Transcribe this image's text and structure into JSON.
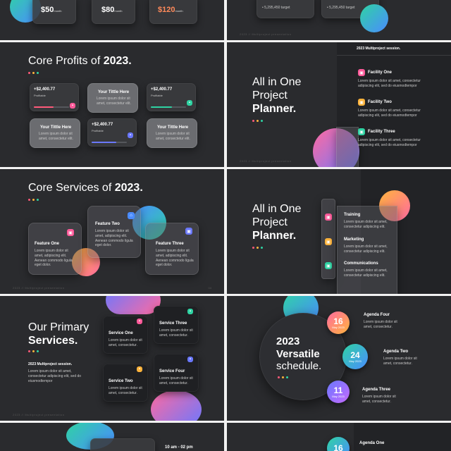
{
  "s1": {
    "prices": [
      {
        "value": "$50",
        "unit": "month"
      },
      {
        "value": "$80",
        "unit": "month"
      },
      {
        "value": "$120",
        "unit": "month"
      }
    ]
  },
  "s2": {
    "targets": [
      "5,295,450 target",
      "5,295,450 target"
    ],
    "footer": "2023 // Multiproject presentation"
  },
  "s3": {
    "title_pre": "Core Profits of ",
    "title_bold": "2023.",
    "stats": [
      {
        "value": "+$2,400.77",
        "label": "Profitable",
        "progress": 0.55,
        "color": "#ff5a7a"
      },
      {
        "value": "+$2,400.77",
        "label": "Profitable",
        "progress": 0.6,
        "color": "#2fd3a3"
      },
      {
        "value": "+$2,400.77",
        "label": "Profitable",
        "progress": 0.7,
        "color": "#6a78ff"
      }
    ],
    "tiles": [
      {
        "title": "Your Tittle Here",
        "body": "Lorem ipsum dolor sit amet, consectetur elit."
      },
      {
        "title": "Your Tittle Here",
        "body": "Lorem ipsum dolor sit amet, consectetur elit."
      },
      {
        "title": "Your Tittle Here",
        "body": "Lorem ipsum dolor sit amet, consectetur elit."
      }
    ]
  },
  "s4": {
    "title_l1": "All in One",
    "title_l2": "Project",
    "title_l3": "Planner.",
    "header": "2023 Multiproject session.",
    "facilities": [
      {
        "title": "Facility One",
        "body": "Lorem ipsum dolor sit amet, consectetur adipiscing elit, sed do eiusmodtempor",
        "color": "#ff5a9a"
      },
      {
        "title": "Facility Two",
        "body": "Lorem ipsum dolor sit amet, consectetur adipiscing elit, sed do eiusmodtempor",
        "color": "#ffb43c"
      },
      {
        "title": "Facility Three",
        "body": "Lorem ipsum dolor sit amet, consectetur adipiscing elit, sed do eiusmodtempor",
        "color": "#2fd3a3"
      }
    ],
    "footer": "2023 // Multiproject presentation"
  },
  "s5": {
    "title_pre": "Core Services of ",
    "title_bold": "2023.",
    "features": [
      {
        "title": "Feature One",
        "body": "Lorem ipsum dolor sit amet, adipiscing elit. Aenean commodo ligula eget dolor."
      },
      {
        "title": "Feature Two",
        "body": "Lorem ipsum dolor sit amet, adipiscing elit. Aenean commodo ligula eget dolor."
      },
      {
        "title": "Feature Three",
        "body": "Lorem ipsum dolor sit amet, adipiscing elit. Aenean commodo ligula eget dolor."
      }
    ],
    "footer": "2023 // Multiproject presentation",
    "page": "04"
  },
  "s6": {
    "title_l1": "All in One",
    "title_l2": "Project",
    "title_l3": "Planner.",
    "items": [
      {
        "title": "Training",
        "body": "Lorem ipsum dolor sit amet, consectetur adipiscing elit."
      },
      {
        "title": "Marketing",
        "body": "Lorem ipsum dolor sit amet, consectetur adipiscing elit."
      },
      {
        "title": "Communications",
        "body": "Lorem ipsum dolor sit amet, consectetur adipiscing elit."
      }
    ]
  },
  "s7": {
    "title_l1": "Our Primary",
    "title_l2": "Services.",
    "session": "2023 Multiproject session.",
    "session_body": "Lorem ipsum dolor sit amet, consectetur adipiscing elit, sed do eiusmodtempor",
    "services": [
      {
        "title": "Service One",
        "body": "Lorem ipsum dolor sit amet, consectetur."
      },
      {
        "title": "Service Three",
        "body": "Lorem ipsum dolor sit amet, consectetur."
      },
      {
        "title": "Service Two",
        "body": "Lorem ipsum dolor sit amet, consectetur."
      },
      {
        "title": "Service Four",
        "body": "Lorem ipsum dolor sit amet, consectetur."
      }
    ],
    "footer": "2023 // Multiproject presentation"
  },
  "s8": {
    "title_l1": "2023",
    "title_l2": "Versatile",
    "title_l3": "schedule.",
    "agenda": [
      {
        "day": "16",
        "month": "May 2023",
        "title": "Agenda Four",
        "body": "Lorem ipsum dolor sit amet, consectetur."
      },
      {
        "day": "24",
        "month": "May 2023",
        "title": "Agenda Two",
        "body": "Lorem ipsum dolor sit amet, consectetur."
      },
      {
        "day": "11",
        "month": "May 2023",
        "title": "Agenda Three",
        "body": "Lorem ipsum dolor sit amet, consectetur."
      }
    ]
  },
  "s9": {
    "time": "10 am - 02 pm"
  },
  "s10": {
    "day": "16",
    "title": "Agenda One"
  }
}
